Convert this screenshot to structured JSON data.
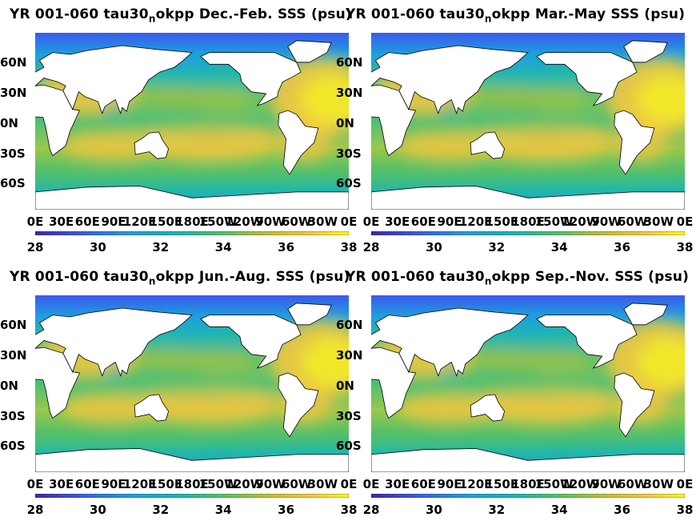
{
  "panels": [
    {
      "title_prefix": "YR 001-060 tau30",
      "title_sub": "n",
      "title_suffix": "okpp Dec.-Feb. SSS (psu)"
    },
    {
      "title_prefix": "YR 001-060 tau30",
      "title_sub": "n",
      "title_suffix": "okpp Mar.-May SSS (psu)"
    },
    {
      "title_prefix": "YR 001-060 tau30",
      "title_sub": "n",
      "title_suffix": "okpp Jun.-Aug. SSS (psu)"
    },
    {
      "title_prefix": "YR 001-060 tau30",
      "title_sub": "n",
      "title_suffix": "okpp Sep.-Nov. SSS (psu)"
    }
  ],
  "lat_labels": [
    "60N",
    "30N",
    "0N",
    "30S",
    "60S"
  ],
  "lon_labels": [
    "0E",
    "30E",
    "60E",
    "90E",
    "120E",
    "150E",
    "180E",
    "150W",
    "120W",
    "90W",
    "60W",
    "30W",
    "0E"
  ],
  "colorbar_ticks": [
    "28",
    "30",
    "32",
    "34",
    "36",
    "38"
  ],
  "colorbar_range": [
    28,
    38
  ],
  "colormap": "parula",
  "colors": {
    "low": "#3e26a8",
    "mid": "#23b9a7",
    "high": "#f9fb15",
    "land": "#ffffff",
    "coast": "#000000"
  }
}
